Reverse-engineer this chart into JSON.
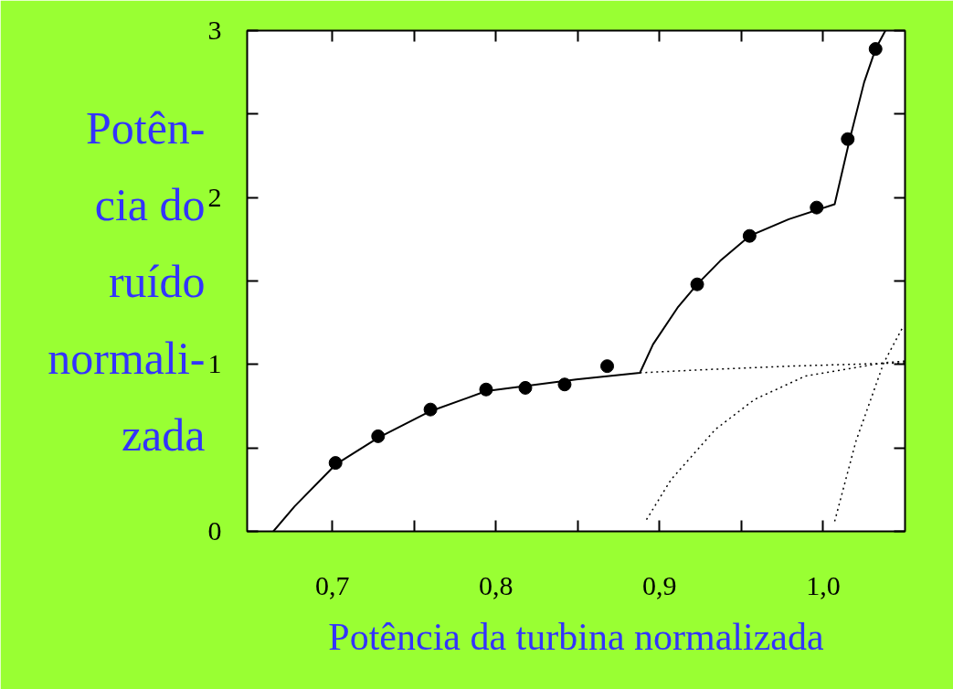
{
  "chart_data": {
    "type": "scatter",
    "xlabel": "Potência da turbina normalizada",
    "ylabel": "Potên-\ncia do\nruído\nnormali-\nzada",
    "xlim": [
      0.648,
      1.05
    ],
    "ylim": [
      0,
      3
    ],
    "xticks": [
      {
        "value": 0.7,
        "label": "0,7"
      },
      {
        "value": 0.75,
        "label": null
      },
      {
        "value": 0.8,
        "label": "0,8"
      },
      {
        "value": 0.85,
        "label": null
      },
      {
        "value": 0.9,
        "label": "0,9"
      },
      {
        "value": 0.95,
        "label": null
      },
      {
        "value": 1.0,
        "label": "1,0"
      }
    ],
    "yticks": [
      0,
      {
        "value": 0.5,
        "label": null
      },
      1,
      {
        "value": 1.5,
        "label": null
      },
      2,
      {
        "value": 2.5,
        "label": null
      },
      3
    ],
    "grid": false,
    "series": [
      {
        "marker": "circle",
        "color": "#000000",
        "x": [
          0.702,
          0.728,
          0.76,
          0.794,
          0.818,
          0.842,
          0.868,
          0.923,
          0.955,
          0.996,
          1.015,
          1.032
        ],
        "values": [
          0.41,
          0.57,
          0.73,
          0.85,
          0.86,
          0.88,
          0.99,
          1.48,
          1.77,
          1.94,
          2.35,
          2.89
        ]
      },
      {
        "type": "line",
        "line_style": "solid",
        "marker": "none",
        "color": "#000000",
        "x": [
          0.664,
          0.677,
          0.702,
          0.728,
          0.76,
          0.794,
          0.849,
          0.888,
          0.896,
          0.911,
          0.923,
          0.937,
          0.955,
          0.979,
          1.007,
          1.016,
          1.025,
          1.032,
          1.038
        ],
        "values": [
          0,
          0.15,
          0.4,
          0.56,
          0.72,
          0.84,
          0.91,
          0.95,
          1.12,
          1.34,
          1.48,
          1.62,
          1.77,
          1.87,
          1.96,
          2.34,
          2.69,
          2.89,
          3.0
        ]
      },
      {
        "type": "line",
        "line_style": "dotted",
        "marker": "none",
        "color": "#000000",
        "x": [
          0.888,
          0.93,
          0.98,
          1.05
        ],
        "values": [
          0.95,
          0.97,
          0.99,
          1.01
        ]
      },
      {
        "type": "line",
        "line_style": "dotted",
        "marker": "none",
        "color": "#000000",
        "x": [
          0.892,
          0.907,
          0.934,
          0.958,
          0.989,
          1.037,
          1.05
        ],
        "values": [
          0.07,
          0.31,
          0.61,
          0.79,
          0.93,
          1.01,
          1.02
        ]
      },
      {
        "type": "line",
        "line_style": "dotted",
        "marker": "none",
        "color": "#000000",
        "x": [
          1.007,
          1.02,
          1.037,
          1.049
        ],
        "values": [
          0.06,
          0.54,
          1.01,
          1.23
        ]
      }
    ]
  }
}
